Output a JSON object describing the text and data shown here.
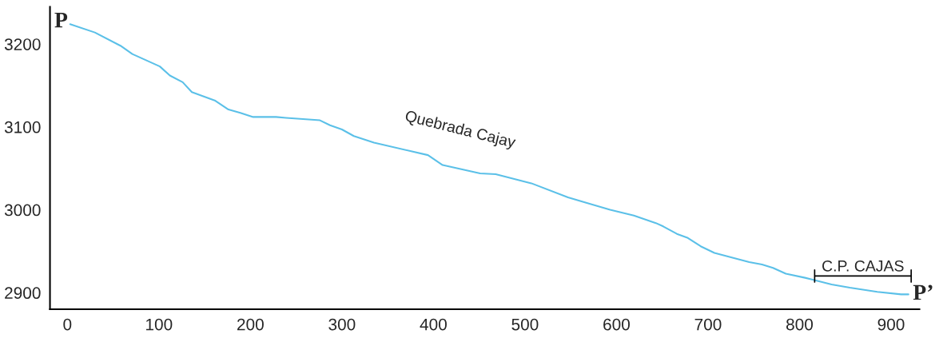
{
  "chart_data": {
    "type": "line",
    "x": [
      3,
      30,
      58,
      71,
      101,
      112,
      126,
      136,
      161,
      176,
      189,
      203,
      228,
      239,
      276,
      287,
      300,
      313,
      335,
      394,
      410,
      451,
      468,
      507,
      547,
      593,
      619,
      643,
      651,
      666,
      678,
      692,
      707,
      721,
      745,
      759,
      771,
      785,
      806,
      817,
      835,
      855,
      885,
      911,
      919
    ],
    "series": [
      {
        "color": "#5bc0e8",
        "values": [
          3224,
          3214,
          3198,
          3188,
          3173,
          3162,
          3154,
          3142,
          3132,
          3121,
          3117,
          3112,
          3112,
          3111,
          3108,
          3102,
          3097,
          3089,
          3081,
          3066,
          3054,
          3044,
          3043,
          3032,
          3015,
          3000,
          2993,
          2984,
          2980,
          2971,
          2966,
          2956,
          2948,
          2944,
          2937,
          2934,
          2930,
          2923,
          2918,
          2915,
          2910,
          2906,
          2901,
          2898,
          2898
        ]
      }
    ],
    "xlim": [
      -19,
      931
    ],
    "ylim": [
      2880,
      3245
    ],
    "xticks": [
      0,
      100,
      200,
      300,
      400,
      500,
      600,
      700,
      800,
      900
    ],
    "yticks": [
      2900,
      3000,
      3100,
      3200
    ],
    "grid": false,
    "legend": false,
    "marker": "none",
    "line_style": "solid",
    "annotations": [
      {
        "text": "P",
        "x": 3,
        "y": 3224
      },
      {
        "text": "P’",
        "x": 919,
        "y": 2898
      },
      {
        "text": "Quebrada Cajay",
        "x": 429,
        "y": 3055
      },
      "C.P. CAJAS"
    ]
  }
}
